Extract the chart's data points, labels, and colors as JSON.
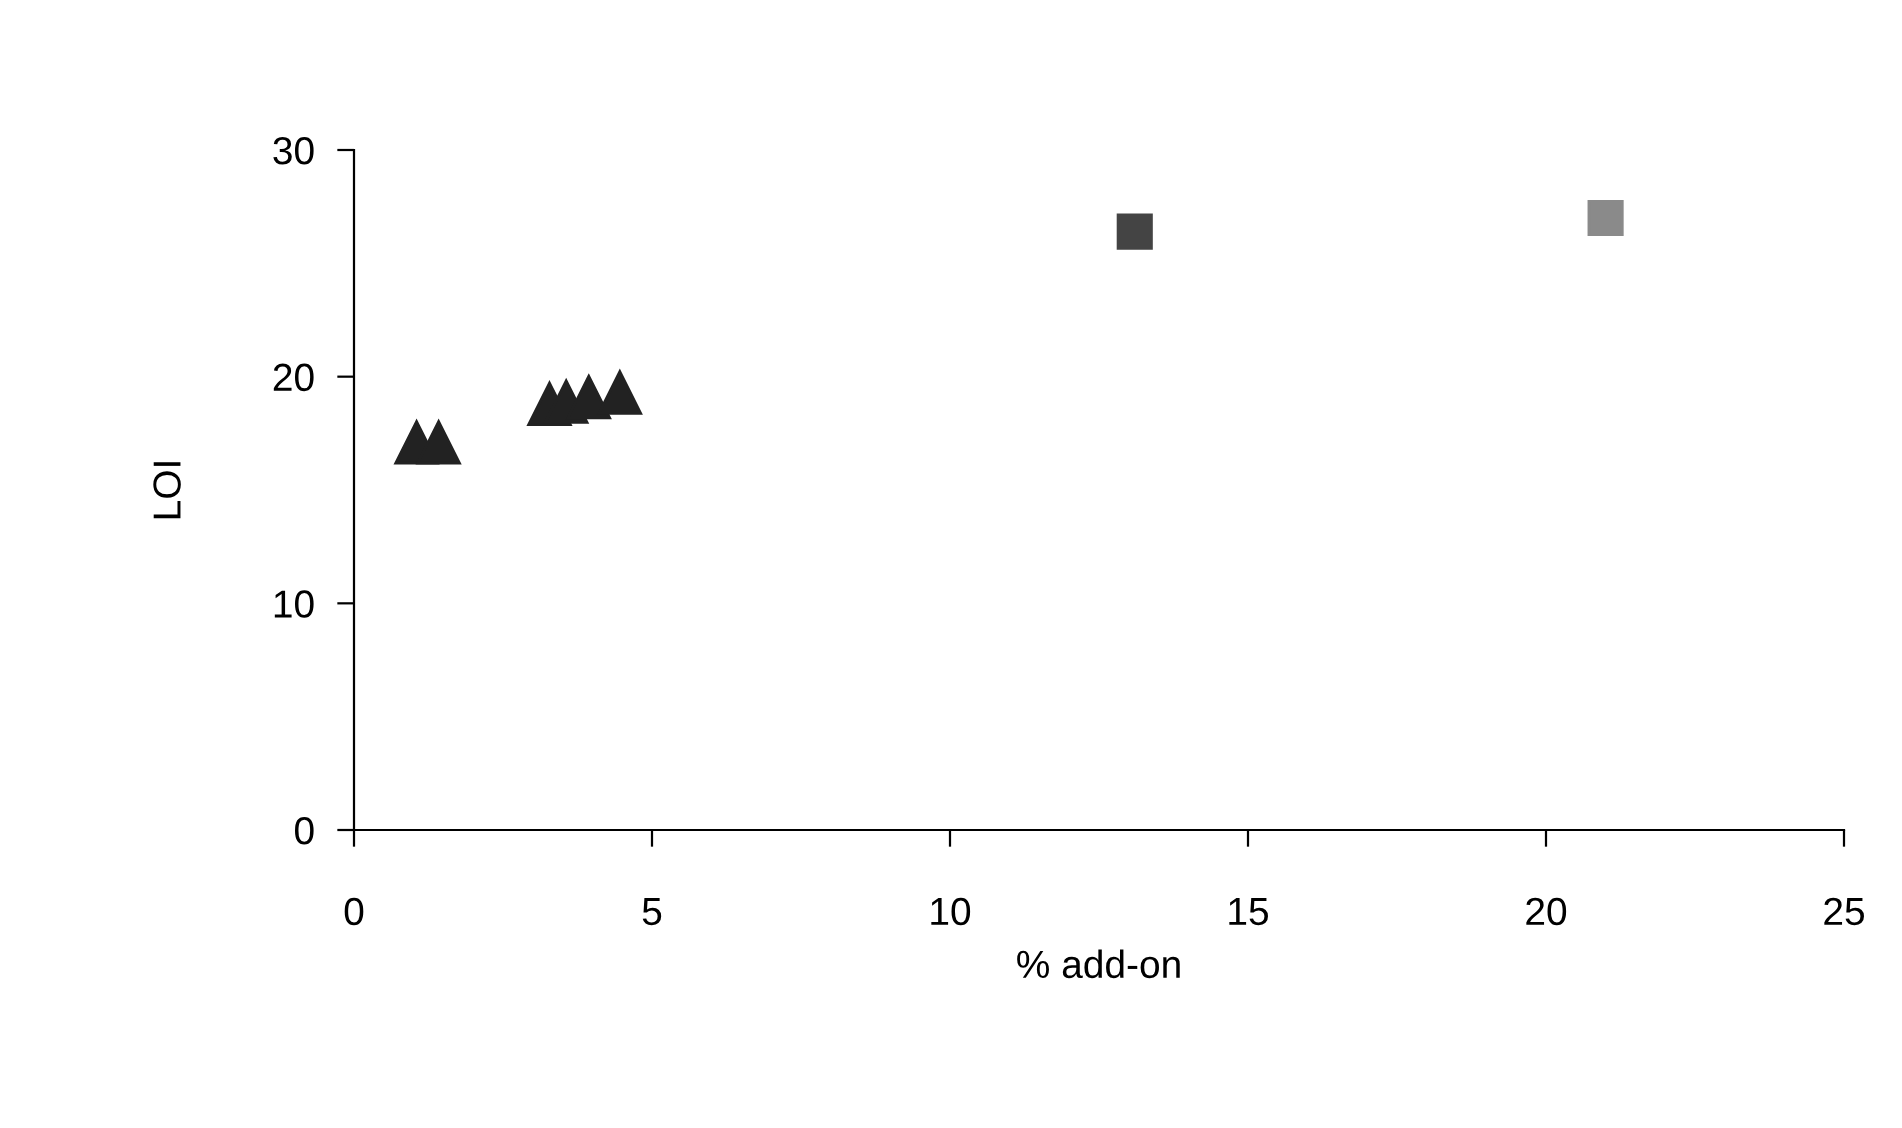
{
  "chart_data": {
    "type": "scatter",
    "xlabel": "% add-on",
    "ylabel": "LOI",
    "xlim": [
      0,
      25
    ],
    "xticks": [
      0,
      5,
      10,
      15,
      20,
      25
    ],
    "ylim": [
      0,
      30
    ],
    "yticks": [
      0,
      10,
      20,
      30
    ],
    "grid": false,
    "legend": false,
    "series": [
      {
        "color": "#222222",
        "marker": "triangle",
        "x": [
          1.05,
          1.42,
          3.28,
          3.56,
          3.94,
          4.46
        ],
        "values": [
          17.1,
          17.1,
          18.8,
          18.9,
          19.1,
          19.3
        ]
      },
      {
        "color": "#444444",
        "marker": "square",
        "x": [
          13.1
        ],
        "values": [
          26.4
        ]
      },
      {
        "color": "#8a8a8a",
        "marker": "square",
        "x": [
          21.0
        ],
        "values": [
          27.0
        ]
      }
    ]
  }
}
